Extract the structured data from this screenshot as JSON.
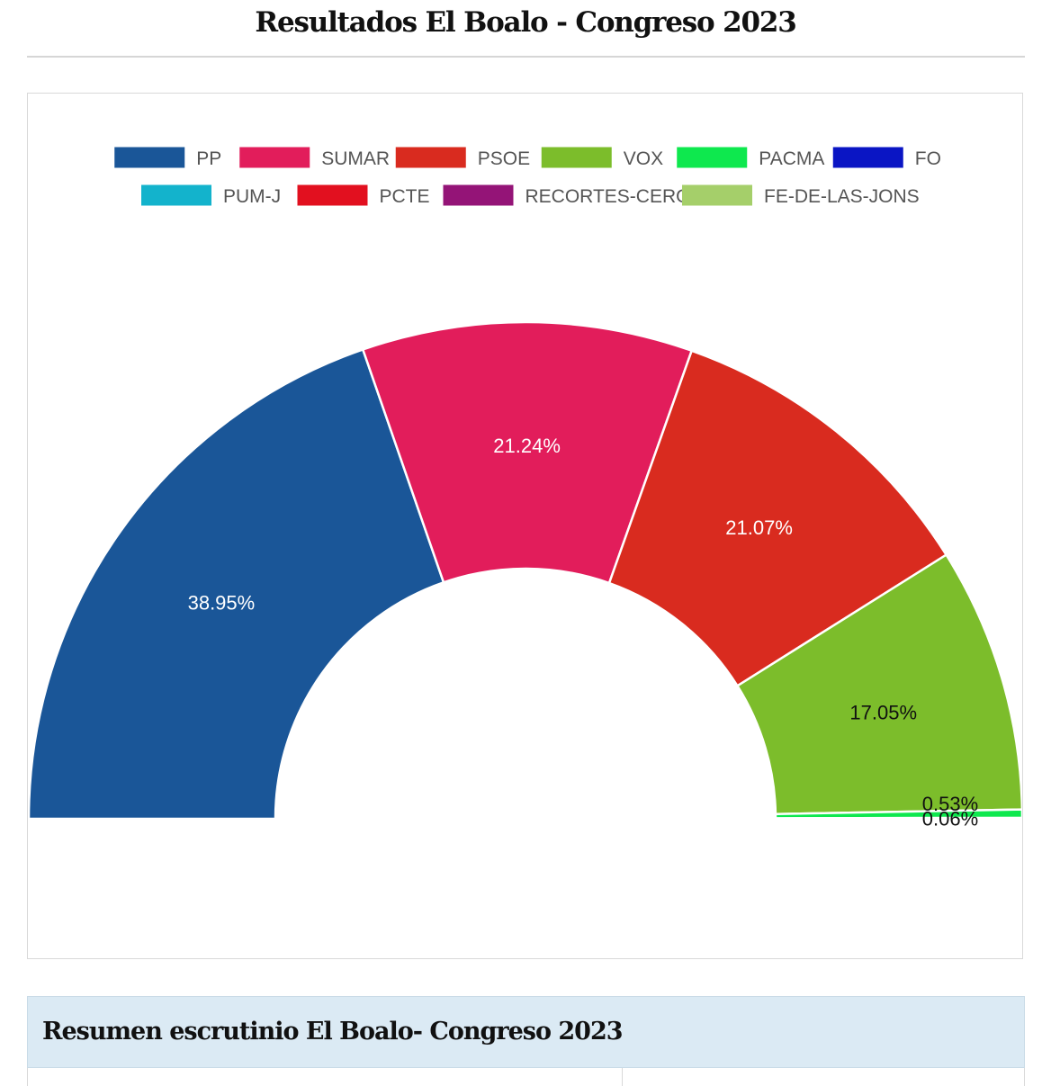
{
  "page": {
    "title": "Resultados El Boalo - Congreso 2023"
  },
  "summary": {
    "title": "Resumen escrutinio El Boalo- Congreso 2023"
  },
  "chart_data": {
    "type": "pie",
    "subtype": "semicircle-donut",
    "title": "",
    "legend_position": "top",
    "series": [
      {
        "name": "PP",
        "value": 38.95,
        "label": "38.95%",
        "color": "#1a5698",
        "label_color": "#ffffff"
      },
      {
        "name": "SUMAR",
        "value": 21.24,
        "label": "21.24%",
        "color": "#e21d5b",
        "label_color": "#ffffff"
      },
      {
        "name": "PSOE",
        "value": 21.07,
        "label": "21.07%",
        "color": "#d92b1f",
        "label_color": "#ffffff"
      },
      {
        "name": "VOX",
        "value": 17.05,
        "label": "17.05%",
        "color": "#7cbd2b",
        "label_color": "#111111"
      },
      {
        "name": "PACMA",
        "value": 0.53,
        "label": "0.53%",
        "color": "#0ee84e",
        "label_color": "#111111"
      },
      {
        "name": "FO",
        "value": 0.06,
        "label": "0.06%",
        "color": "#0a15c4",
        "label_color": "#111111"
      },
      {
        "name": "PUM-J",
        "value": 0,
        "label": "",
        "color": "#13b3cc",
        "label_color": "#111111"
      },
      {
        "name": "PCTE",
        "value": 0,
        "label": "",
        "color": "#e2101f",
        "label_color": "#111111"
      },
      {
        "name": "RECORTES-CERO",
        "value": 0,
        "label": "",
        "color": "#941477",
        "label_color": "#111111"
      },
      {
        "name": "FE-DE-LAS-JONS",
        "value": 0,
        "label": "",
        "color": "#a5cf6a",
        "label_color": "#111111"
      }
    ]
  }
}
